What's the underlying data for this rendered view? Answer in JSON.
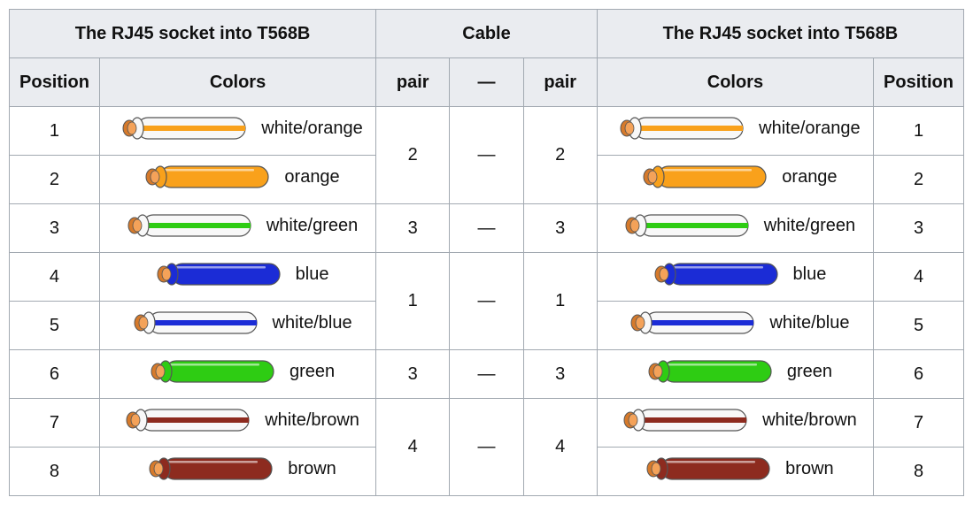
{
  "headers": {
    "left_group": "The RJ45 socket into T568B",
    "cable_group": "Cable",
    "right_group": "The RJ45 socket into T568B",
    "position": "Position",
    "colors": "Colors",
    "pair": "pair",
    "dash": "—"
  },
  "palette": {
    "orange": "#f9a11b",
    "green": "#2ecc13",
    "blue": "#1b2cd6",
    "brown": "#8d2b1f",
    "white": "#f8f8f8",
    "copper_out": "#d67a2b",
    "copper_in": "#f4a259",
    "wire_stroke": "#555555"
  },
  "pairs": [
    {
      "pair_left": "2",
      "dash": "—",
      "pair_right": "2",
      "span": 2
    },
    {
      "pair_left": "3",
      "dash": "—",
      "pair_right": "3",
      "span": 1
    },
    {
      "pair_left": "1",
      "dash": "—",
      "pair_right": "1",
      "span": 2
    },
    {
      "pair_left": "3",
      "dash": "—",
      "pair_right": "3",
      "span": 1
    },
    {
      "pair_left": "4",
      "dash": "—",
      "pair_right": "4",
      "span": 2
    }
  ],
  "rows": [
    {
      "pos": "1",
      "label": "white/orange",
      "striped": true,
      "color_key": "orange"
    },
    {
      "pos": "2",
      "label": "orange",
      "striped": false,
      "color_key": "orange"
    },
    {
      "pos": "3",
      "label": "white/green",
      "striped": true,
      "color_key": "green"
    },
    {
      "pos": "4",
      "label": "blue",
      "striped": false,
      "color_key": "blue"
    },
    {
      "pos": "5",
      "label": "white/blue",
      "striped": true,
      "color_key": "blue"
    },
    {
      "pos": "6",
      "label": "green",
      "striped": false,
      "color_key": "green"
    },
    {
      "pos": "7",
      "label": "white/brown",
      "striped": true,
      "color_key": "brown"
    },
    {
      "pos": "8",
      "label": "brown",
      "striped": false,
      "color_key": "brown"
    }
  ],
  "wire_svg": {
    "width": 160,
    "height": 40
  }
}
